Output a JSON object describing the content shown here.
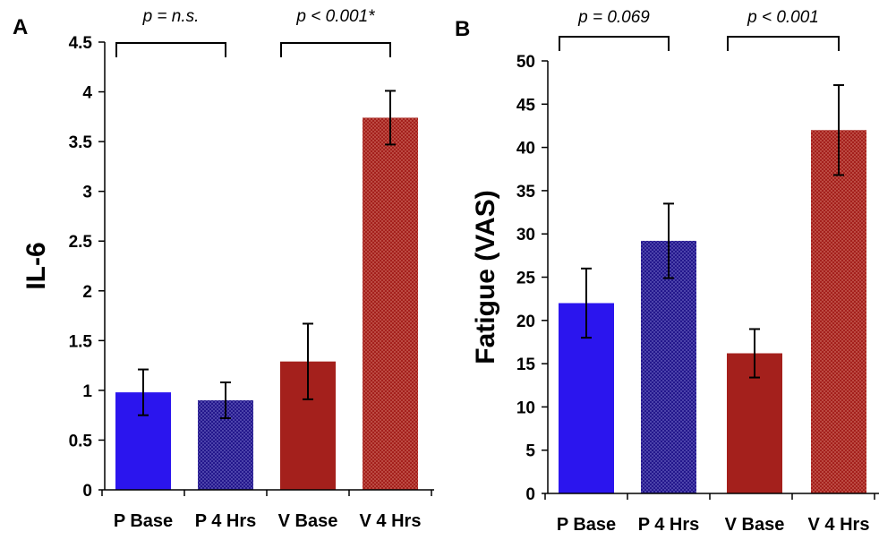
{
  "chart_data": [
    {
      "type": "bar",
      "panel": "A",
      "ylabel": "IL-6",
      "xlabel": "",
      "ylim": [
        0,
        4.5
      ],
      "yticks": [
        "0",
        "0.5",
        "1",
        "1.5",
        "2",
        "2.5",
        "3",
        "3.5",
        "4",
        "4.5"
      ],
      "categories": [
        "P Base",
        "P 4 Hrs",
        "V Base",
        "V 4 Hrs"
      ],
      "values": [
        0.98,
        0.9,
        1.29,
        3.74
      ],
      "errors": [
        0.23,
        0.18,
        0.38,
        0.27
      ],
      "colors": [
        "#2b15ee",
        "#23178c",
        "#a4201c",
        "#a4201c"
      ],
      "patterned": [
        false,
        true,
        false,
        true
      ],
      "annotations": [
        {
          "text": "p = n.s.",
          "from": 0,
          "to": 1
        },
        {
          "text": "p < 0.001*",
          "from": 2,
          "to": 3
        }
      ],
      "grid": false
    },
    {
      "type": "bar",
      "panel": "B",
      "ylabel": "Fatigue (VAS)",
      "xlabel": "",
      "ylim": [
        0,
        50
      ],
      "yticks": [
        "0",
        "5",
        "10",
        "15",
        "20",
        "25",
        "30",
        "35",
        "40",
        "45",
        "50"
      ],
      "categories": [
        "P Base",
        "P 4 Hrs",
        "V Base",
        "V 4 Hrs"
      ],
      "values": [
        22.0,
        29.2,
        16.2,
        42.0
      ],
      "errors": [
        4.0,
        4.3,
        2.8,
        5.2
      ],
      "colors": [
        "#2b15ee",
        "#23178c",
        "#a4201c",
        "#a4201c"
      ],
      "patterned": [
        false,
        true,
        false,
        true
      ],
      "annotations": [
        {
          "text": "p = 0.069",
          "from": 0,
          "to": 1
        },
        {
          "text": "p < 0.001",
          "from": 2,
          "to": 3
        }
      ],
      "grid": false
    }
  ]
}
